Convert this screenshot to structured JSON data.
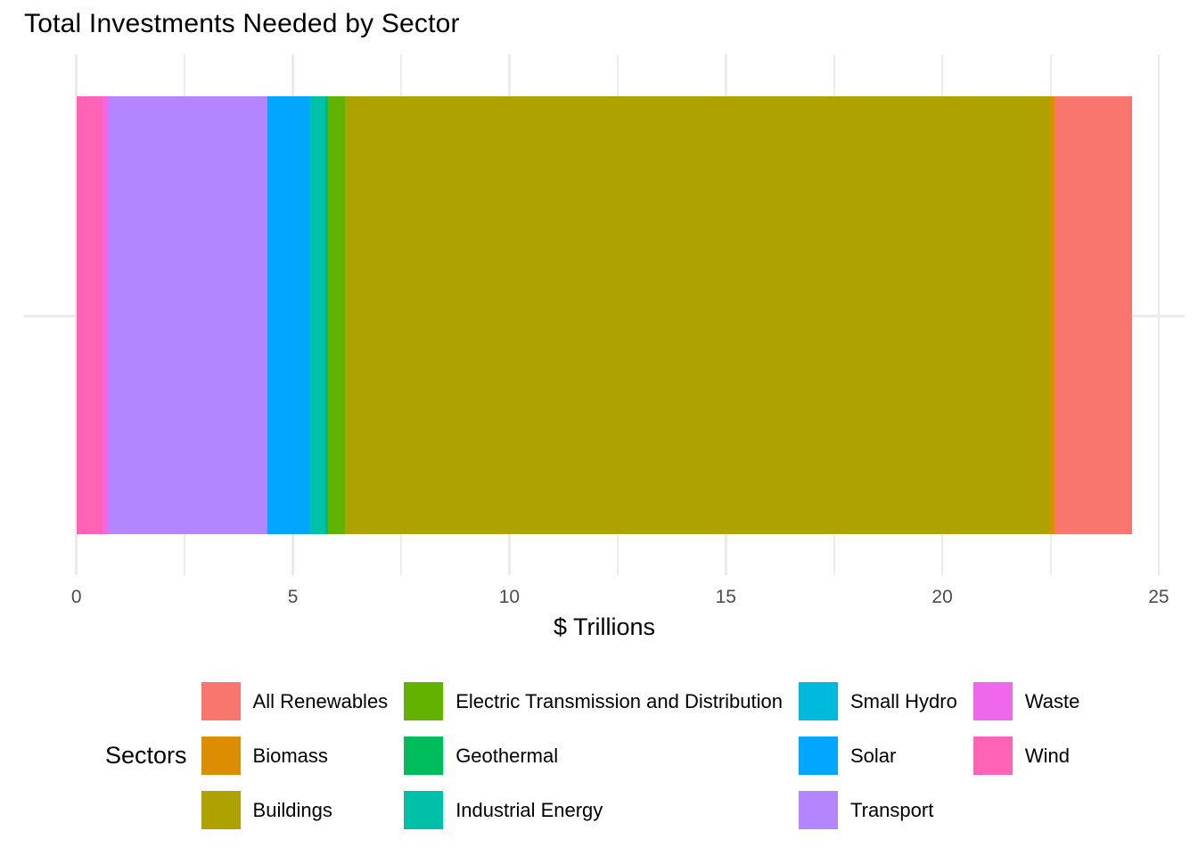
{
  "title": "Total Investments Needed by Sector",
  "chart_data": {
    "type": "bar",
    "orientation": "horizontal_stacked",
    "title": "Total Investments Needed by Sector",
    "xlabel": "$ Trillions",
    "ylabel": "",
    "legend_title": "Sectors",
    "legend_position": "bottom",
    "grid": true,
    "xlim": [
      0,
      25
    ],
    "x_ticks": [
      0,
      5,
      10,
      15,
      20,
      25
    ],
    "x_minor_ticks": [
      2.5,
      7.5,
      12.5,
      17.5,
      22.5
    ],
    "series": [
      {
        "name": "Wind",
        "value": 0.6,
        "color": "#FF63B6"
      },
      {
        "name": "Waste",
        "value": 0.14,
        "color": "#EF67EB"
      },
      {
        "name": "Transport",
        "value": 3.67,
        "color": "#B385FF"
      },
      {
        "name": "Solar",
        "value": 0.96,
        "color": "#00A6FF"
      },
      {
        "name": "Small Hydro",
        "value": 0.02,
        "color": "#00BADE"
      },
      {
        "name": "Industrial Energy",
        "value": 0.36,
        "color": "#00C1A7"
      },
      {
        "name": "Geothermal",
        "value": 0.06,
        "color": "#00BD5C"
      },
      {
        "name": "Electric Transmission and Distribution",
        "value": 0.39,
        "color": "#64B200"
      },
      {
        "name": "Buildings",
        "value": 16.28,
        "color": "#AEA200"
      },
      {
        "name": "Biomass",
        "value": 0.12,
        "color": "#DB8E00"
      },
      {
        "name": "All Renewables",
        "value": 1.78,
        "color": "#F8766D"
      }
    ],
    "legend_columns": [
      [
        "All Renewables",
        "Biomass",
        "Buildings"
      ],
      [
        "Electric Transmission and Distribution",
        "Geothermal",
        "Industrial Energy"
      ],
      [
        "Small Hydro",
        "Solar",
        "Transport"
      ],
      [
        "Waste",
        "Wind"
      ]
    ]
  },
  "colors": {
    "gridline": "#EBEBEB",
    "axis_text": "#4D4D4D",
    "background": "#FFFFFF"
  }
}
